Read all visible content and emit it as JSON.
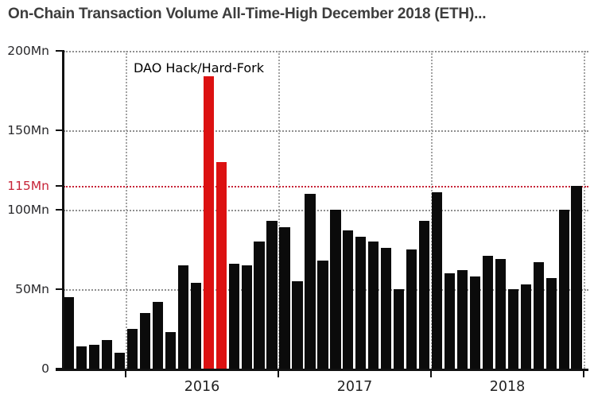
{
  "title": "On-Chain Transaction Volume All-Time-High December 2018 (ETH)...",
  "annotation": "DAO Hack/Hard-Fork",
  "colors": {
    "bar": "#0b0b0b",
    "highlight_bar": "#dc1111",
    "ath_line": "#c72438",
    "ath_label": "#c72438",
    "grid": "#8f8f8f",
    "axis": "#111111",
    "title_text": "#3d3d3d",
    "tick_label": "#28282b"
  },
  "chart_data": {
    "type": "bar",
    "title": "On-Chain Transaction Volume All-Time-High December 2018 (ETH)...",
    "annotation": "DAO Hack/Hard-Fork",
    "unit": "Mn",
    "ylabel": "",
    "xlabel": "",
    "ylim": [
      0,
      200
    ],
    "grid": true,
    "x": [
      "2015-08",
      "2015-09",
      "2015-10",
      "2015-11",
      "2015-12",
      "2016-01",
      "2016-02",
      "2016-03",
      "2016-04",
      "2016-05",
      "2016-06",
      "2016-07",
      "2016-08",
      "2016-09",
      "2016-10",
      "2016-11",
      "2016-12",
      "2017-01",
      "2017-02",
      "2017-03",
      "2017-04",
      "2017-05",
      "2017-06",
      "2017-07",
      "2017-08",
      "2017-09",
      "2017-10",
      "2017-11",
      "2017-12",
      "2018-01",
      "2018-02",
      "2018-03",
      "2018-04",
      "2018-05",
      "2018-06",
      "2018-07",
      "2018-08",
      "2018-09",
      "2018-10",
      "2018-11",
      "2018-12"
    ],
    "values": [
      45,
      14,
      15,
      18,
      10,
      25,
      35,
      42,
      23,
      65,
      54,
      184,
      130,
      66,
      65,
      80,
      93,
      89,
      55,
      110,
      68,
      100,
      87,
      83,
      80,
      76,
      50,
      75,
      93,
      111,
      60,
      62,
      58,
      71,
      69,
      50,
      53,
      67,
      57,
      100,
      115
    ],
    "highlighted_indices": [
      11,
      12
    ],
    "highlight_label": "DAO Hack/Hard-Fork",
    "ath_line": {
      "value": 115,
      "label": "115Mn"
    },
    "y_ticks": [
      {
        "label": "0",
        "value": 0,
        "gridline": false,
        "red": false
      },
      {
        "label": "50Mn",
        "value": 50,
        "gridline": true,
        "red": false
      },
      {
        "label": "100Mn",
        "value": 100,
        "gridline": true,
        "red": false
      },
      {
        "label": "115Mn",
        "value": 115,
        "gridline": true,
        "red": true
      },
      {
        "label": "150Mn",
        "value": 150,
        "gridline": true,
        "red": false
      },
      {
        "label": "200Mn",
        "value": 200,
        "gridline": true,
        "red": false
      }
    ],
    "x_year_labels": [
      "2016",
      "2017",
      "2018"
    ],
    "legend": null
  }
}
